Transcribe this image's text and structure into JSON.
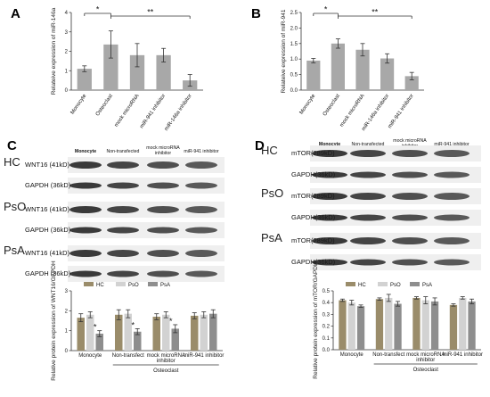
{
  "panels": [
    {
      "label": "A"
    },
    {
      "label": "B"
    },
    {
      "label": "C"
    },
    {
      "label": "D"
    }
  ],
  "blots": [
    {
      "lanes": [
        "Monocyte",
        "Non-transfected",
        "mock microRNA inhibitor",
        "miR-941 inhibitor"
      ],
      "rows": [
        {
          "condition": "HC",
          "bands": [
            "WNT16 (41kD)",
            "GAPDH (36kD)"
          ]
        },
        {
          "condition": "PsO",
          "bands": [
            "WNT16 (41kD)",
            "GAPDH (36kD)"
          ]
        },
        {
          "condition": "PsA",
          "bands": [
            "WNT16 (41kD)",
            "GAPDH (36kD)"
          ]
        }
      ]
    },
    {
      "lanes": [
        "Monocyte",
        "Non-transfected",
        "mock microRNA inhibitor",
        "miR-941 inhibitor"
      ],
      "rows": [
        {
          "condition": "HC",
          "bands": [
            "mTOR(289kD)",
            "GAPDH(36kD)"
          ]
        },
        {
          "condition": "PsO",
          "bands": [
            "mTOR(289kD)",
            "GAPDH(36kD)"
          ]
        },
        {
          "condition": "PsA",
          "bands": [
            "mTOR(289kD)",
            "GAPDH(36kD)"
          ]
        }
      ]
    }
  ],
  "colors": {
    "HC": "#9a8c6a",
    "PsO": "#d2d2d2",
    "PsA": "#8e8e8e",
    "bar": "#a8a8a8",
    "band": "#1a1a1a"
  },
  "chart_data": [
    {
      "type": "bar",
      "panel": "A",
      "categories": [
        "Monocyte",
        "Osteoclast",
        "mock microRNA",
        "miR-941 inhibitor",
        "miR-146a inhibitor"
      ],
      "values": [
        1.1,
        2.35,
        1.8,
        1.8,
        0.5
      ],
      "errors": [
        0.15,
        0.7,
        0.6,
        0.35,
        0.3
      ],
      "ylabel": "Relateive expression of miR-146a",
      "ylim": [
        0,
        4
      ],
      "yticks": [
        "0",
        "1",
        "2",
        "3",
        "4"
      ],
      "significance": [
        {
          "from": 0,
          "to": 1,
          "label": "*"
        },
        {
          "from": 1,
          "to": 4,
          "label": "**"
        }
      ]
    },
    {
      "type": "bar",
      "panel": "B",
      "categories": [
        "Monocyte",
        "Osteoclast",
        "mock microRNA",
        "miR-146a inhibitor",
        "miR-941 inhibitor"
      ],
      "values": [
        0.95,
        1.5,
        1.3,
        1.02,
        0.45
      ],
      "errors": [
        0.07,
        0.15,
        0.2,
        0.15,
        0.12
      ],
      "ylabel": "Relateive expression of miR-941",
      "ylim": [
        0,
        2.5
      ],
      "yticks": [
        "0.0",
        "0.5",
        "1.0",
        "1.5",
        "2.0",
        "2.5"
      ],
      "significance": [
        {
          "from": 0,
          "to": 1,
          "label": "*"
        },
        {
          "from": 1,
          "to": 4,
          "label": "**"
        }
      ]
    },
    {
      "type": "bar",
      "panel": "C",
      "categories": [
        "Monocyte",
        "Non-transfect",
        "mock microRNA inhibitor",
        "miR-941 inhibitor"
      ],
      "series": [
        {
          "name": "HC",
          "values": [
            1.65,
            1.8,
            1.7,
            1.75
          ],
          "errors": [
            0.2,
            0.25,
            0.15,
            0.15
          ]
        },
        {
          "name": "PsO",
          "values": [
            1.8,
            1.85,
            1.8,
            1.8
          ],
          "errors": [
            0.15,
            0.2,
            0.15,
            0.15
          ]
        },
        {
          "name": "PsA",
          "values": [
            0.85,
            0.95,
            1.1,
            1.85
          ],
          "errors": [
            0.15,
            0.15,
            0.2,
            0.2
          ]
        }
      ],
      "stars": [
        {
          "category": 0,
          "series": 2,
          "label": "*"
        },
        {
          "category": 1,
          "series": 2,
          "label": "*"
        },
        {
          "category": 2,
          "series": 2,
          "label": "*"
        }
      ],
      "ylabel": "Relative protein expression of WNT16/GAPDH",
      "ylim": [
        0,
        3
      ],
      "yticks": [
        "0",
        "1",
        "2",
        "3"
      ],
      "group_label": "Osteoclast",
      "legend": "top"
    },
    {
      "type": "bar",
      "panel": "D",
      "categories": [
        "Monocyte",
        "Non-transfect",
        "mock microRNA inhibitor",
        "miR-941 inhibitor"
      ],
      "series": [
        {
          "name": "HC",
          "values": [
            0.42,
            0.43,
            0.44,
            0.38
          ],
          "errors": [
            0.01,
            0.01,
            0.01,
            0.01
          ]
        },
        {
          "name": "PsO",
          "values": [
            0.4,
            0.44,
            0.42,
            0.44
          ],
          "errors": [
            0.02,
            0.03,
            0.03,
            0.01
          ]
        },
        {
          "name": "PsA",
          "values": [
            0.37,
            0.39,
            0.41,
            0.41
          ],
          "errors": [
            0.01,
            0.02,
            0.03,
            0.02
          ]
        }
      ],
      "ylabel": "Relative protein expression of mTOR/GAPDH",
      "ylim": [
        0,
        0.5
      ],
      "yticks": [
        "0.0",
        "0.1",
        "0.2",
        "0.3",
        "0.4",
        "0.5"
      ],
      "group_label": "Osteoclast",
      "legend": "top"
    }
  ]
}
